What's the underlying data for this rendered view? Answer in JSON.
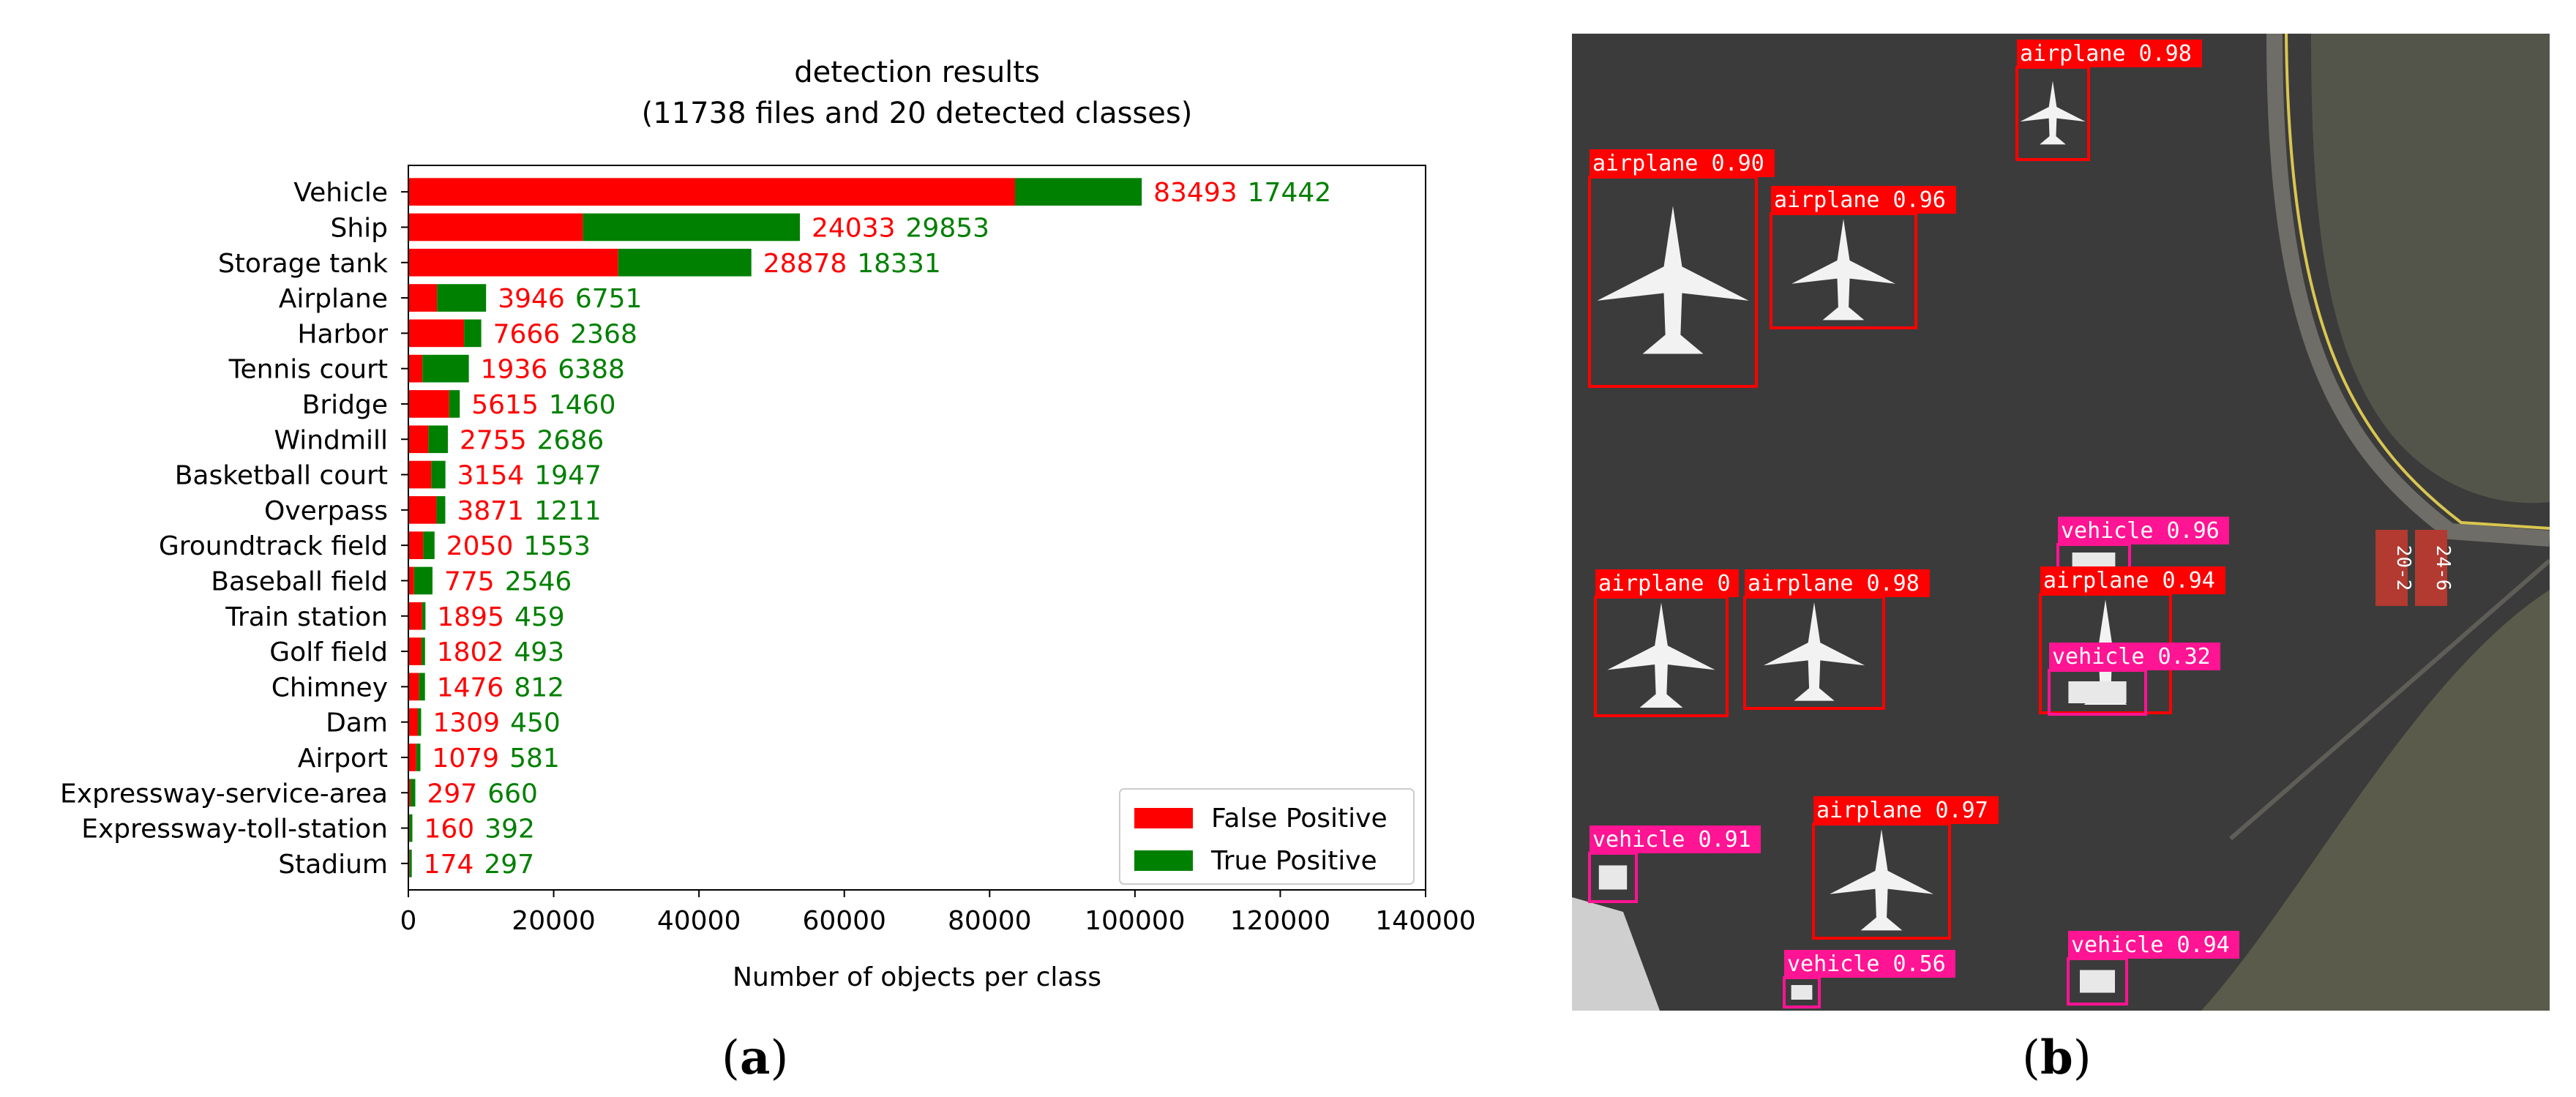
{
  "chart_data": {
    "type": "bar",
    "orientation": "horizontal",
    "stacked": true,
    "title": "detection results",
    "subtitle": "(11738 files and 20 detected classes)",
    "xlabel": "Number of objects per class",
    "ylabel": "",
    "xlim": [
      0,
      140000
    ],
    "xticks": [
      "0",
      "20000",
      "40000",
      "60000",
      "80000",
      "100000",
      "120000",
      "140000"
    ],
    "legend_position": "bottom-right",
    "categories": [
      "Vehicle",
      "Ship",
      "Storage tank",
      "Airplane",
      "Harbor",
      "Tennis court",
      "Bridge",
      "Windmill",
      "Basketball court",
      "Overpass",
      "Groundtrack field",
      "Baseball field",
      "Train station",
      "Golf field",
      "Chimney",
      "Dam",
      "Airport",
      "Expressway-service-area",
      "Expressway-toll-station",
      "Stadium"
    ],
    "series": [
      {
        "name": "False Positive",
        "color": "#ff0000",
        "values": [
          83493,
          24033,
          28878,
          3946,
          7666,
          1936,
          5615,
          2755,
          3154,
          3871,
          2050,
          775,
          1895,
          1802,
          1476,
          1309,
          1079,
          297,
          160,
          174
        ]
      },
      {
        "name": "True Positive",
        "color": "#008000",
        "values": [
          17442,
          29853,
          18331,
          6751,
          2368,
          6388,
          1460,
          2686,
          1947,
          1211,
          1553,
          2546,
          459,
          493,
          812,
          450,
          581,
          660,
          392,
          297
        ]
      }
    ]
  },
  "panels": {
    "left_label": "a",
    "right_label": "b"
  },
  "aerial_image": {
    "detections": [
      {
        "label": "airplane 0.98",
        "kind": "airplane"
      },
      {
        "label": "airplane 0.90",
        "kind": "airplane"
      },
      {
        "label": "airplane 0.96",
        "kind": "airplane"
      },
      {
        "label": "vehicle 0.96",
        "kind": "vehicle"
      },
      {
        "label": "airplane 0",
        "kind": "airplane"
      },
      {
        "label": "airplane 0.98",
        "kind": "airplane"
      },
      {
        "label": "airplane 0.94",
        "kind": "airplane"
      },
      {
        "label": "vehicle 0.32",
        "kind": "vehicle"
      },
      {
        "label": "airplane 0.97",
        "kind": "airplane"
      },
      {
        "label": "vehicle 0.91",
        "kind": "vehicle"
      },
      {
        "label": "vehicle 0.56",
        "kind": "vehicle"
      },
      {
        "label": "vehicle 0.94",
        "kind": "vehicle"
      }
    ],
    "runway_markings": [
      "20-2",
      "24-6"
    ],
    "colors": {
      "airplane": "#ff0000",
      "vehicle": "#ff1493",
      "tarmac": "#3c3b3b",
      "grass": "#5a5b4b"
    }
  }
}
